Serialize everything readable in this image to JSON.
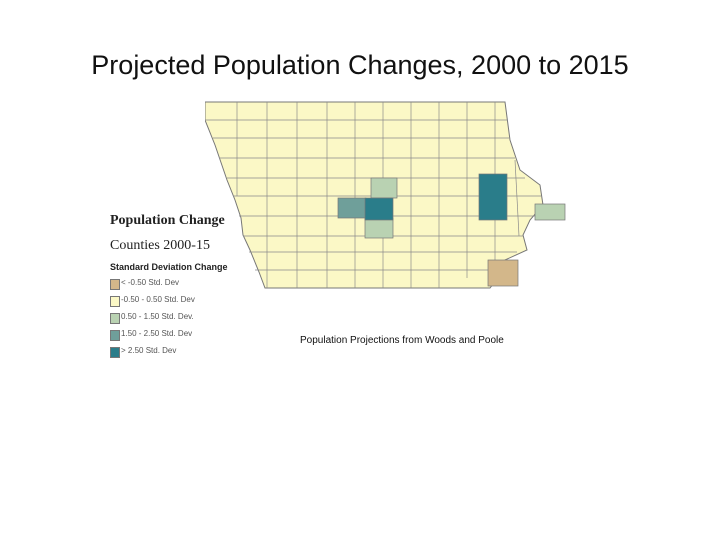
{
  "slide": {
    "title": "Projected Population Changes, 2000 to 2015"
  },
  "legend": {
    "title": "Population Change",
    "subtitle": "Counties 2000-15",
    "heading": "Standard Deviation Change",
    "items": [
      {
        "label": "< -0.50 Std. Dev",
        "color": "#d3b78a"
      },
      {
        "label": "-0.50 - 0.50 Std. Dev",
        "color": "#fbf8c6"
      },
      {
        "label": "0.50 - 1.50 Std. Dev.",
        "color": "#b9d2b2"
      },
      {
        "label": "1.50 - 2.50 Std. Dev",
        "color": "#6f9f9a"
      },
      {
        "label": "> 2.50 Std. Dev",
        "color": "#2a7d8a"
      }
    ]
  },
  "map": {
    "region": "Iowa counties",
    "base_color": "#fbf8c6",
    "border_color": "#777777"
  },
  "source": {
    "text": "Population Projections from Woods and Poole"
  }
}
